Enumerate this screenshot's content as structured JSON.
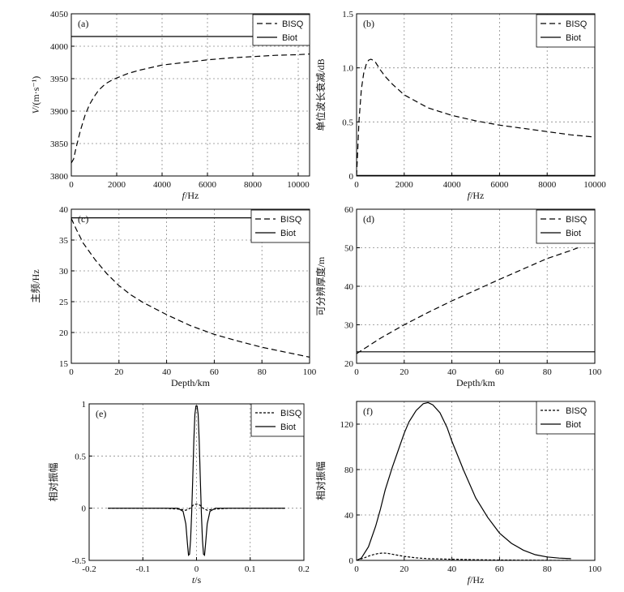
{
  "chart_data": [
    {
      "panel": "(a)",
      "type": "line",
      "xlabel_italic": "f",
      "xlabel_rest": "/Hz",
      "ylabel_italic": "V",
      "ylabel_rest": "/(m·s⁻¹)",
      "xlim": [
        0,
        10500
      ],
      "ylim": [
        3800,
        4050
      ],
      "xticks": [
        0,
        2000,
        4000,
        6000,
        8000,
        10000
      ],
      "yticks": [
        3800,
        3850,
        3900,
        3950,
        4000,
        4050
      ],
      "legend": {
        "position": "top-right",
        "entries": [
          "BISQ",
          "Biot"
        ]
      },
      "series": [
        {
          "name": "BISQ",
          "style": "dashed",
          "x": [
            0,
            100,
            200,
            400,
            600,
            800,
            1000,
            1200,
            1500,
            1800,
            2000,
            2500,
            3000,
            4000,
            5000,
            6000,
            7000,
            8000,
            9000,
            10000,
            10500
          ],
          "y": [
            3820,
            3826,
            3842,
            3870,
            3893,
            3910,
            3922,
            3932,
            3942,
            3948,
            3951,
            3958,
            3963,
            3971,
            3975,
            3979,
            3982,
            3984,
            3986,
            3987,
            3988
          ]
        },
        {
          "name": "Biot",
          "style": "solid",
          "x": [
            0,
            10500
          ],
          "y": [
            4015,
            4015
          ]
        }
      ]
    },
    {
      "panel": "(b)",
      "type": "line",
      "xlabel_italic": "f",
      "xlabel_rest": "/Hz",
      "ylabel_italic": "",
      "ylabel_rest": "单位波长衰减/dB",
      "xlim": [
        0,
        10000
      ],
      "ylim": [
        0,
        1.5
      ],
      "xticks": [
        0,
        2000,
        4000,
        6000,
        8000,
        10000
      ],
      "yticks": [
        0,
        0.5,
        1.0,
        1.5
      ],
      "ytick_labels": [
        "0",
        "0.5",
        "1.0",
        "1.5"
      ],
      "legend": {
        "position": "top-right",
        "entries": [
          "BISQ",
          "Biot"
        ]
      },
      "series": [
        {
          "name": "BISQ",
          "style": "dashed",
          "x": [
            0,
            50,
            100,
            200,
            300,
            400,
            500,
            600,
            700,
            800,
            1000,
            1200,
            1500,
            2000,
            3000,
            4000,
            5000,
            6000,
            7000,
            8000,
            9000,
            10000
          ],
          "y": [
            0.0,
            0.25,
            0.5,
            0.8,
            0.95,
            1.03,
            1.07,
            1.08,
            1.07,
            1.05,
            0.98,
            0.92,
            0.85,
            0.75,
            0.63,
            0.56,
            0.51,
            0.47,
            0.44,
            0.41,
            0.38,
            0.36
          ]
        },
        {
          "name": "Biot",
          "style": "solid",
          "x": [
            0,
            10000
          ],
          "y": [
            0.005,
            0.005
          ]
        }
      ]
    },
    {
      "panel": "(c)",
      "type": "line",
      "xlabel_italic": "",
      "xlabel_rest": "Depth/km",
      "ylabel_italic": "",
      "ylabel_rest": "主频/Hz",
      "xlim": [
        0,
        100
      ],
      "ylim": [
        15,
        40
      ],
      "xticks": [
        0,
        20,
        40,
        60,
        80,
        100
      ],
      "yticks": [
        15,
        20,
        25,
        30,
        35,
        40
      ],
      "legend": {
        "position": "top-right",
        "entries": [
          "BISQ",
          "Biot"
        ]
      },
      "series": [
        {
          "name": "BISQ",
          "style": "dashed",
          "x": [
            0,
            2,
            5,
            10,
            15,
            20,
            25,
            30,
            40,
            50,
            60,
            70,
            80,
            90,
            100
          ],
          "y": [
            38.5,
            36.8,
            34.5,
            31.8,
            29.5,
            27.6,
            26.1,
            24.9,
            22.9,
            21.1,
            19.7,
            18.6,
            17.6,
            16.8,
            16.0
          ]
        },
        {
          "name": "Biot",
          "style": "solid",
          "x": [
            0,
            100
          ],
          "y": [
            38.6,
            38.6
          ]
        }
      ]
    },
    {
      "panel": "(d)",
      "type": "line",
      "xlabel_italic": "",
      "xlabel_rest": "Depth/km",
      "ylabel_italic": "",
      "ylabel_rest": "可分辨厚度/m",
      "xlim": [
        0,
        100
      ],
      "ylim": [
        20,
        60
      ],
      "xticks": [
        0,
        20,
        40,
        60,
        80,
        100
      ],
      "yticks": [
        20,
        30,
        40,
        50,
        60
      ],
      "legend": {
        "position": "top-right",
        "entries": [
          "BISQ",
          "Biot"
        ]
      },
      "series": [
        {
          "name": "BISQ",
          "style": "dashed",
          "x": [
            0,
            10,
            20,
            30,
            40,
            50,
            60,
            70,
            80,
            90,
            93
          ],
          "y": [
            22.5,
            26.5,
            30.0,
            33.2,
            36.2,
            39.0,
            41.8,
            44.5,
            47.2,
            49.3,
            50.0
          ]
        },
        {
          "name": "Biot",
          "style": "solid",
          "x": [
            0,
            100
          ],
          "y": [
            23,
            23
          ]
        }
      ]
    },
    {
      "panel": "(e)",
      "type": "line",
      "xlabel_italic": "t",
      "xlabel_rest": "/s",
      "ylabel_italic": "",
      "ylabel_rest": "相对振幅",
      "xlim": [
        -0.2,
        0.2
      ],
      "ylim": [
        -0.5,
        1
      ],
      "xticks": [
        -0.2,
        -0.1,
        0,
        0.1,
        0.2
      ],
      "yticks": [
        -0.5,
        0,
        0.5,
        1
      ],
      "legend": {
        "position": "top-right",
        "entries": [
          "BISQ",
          "Biot"
        ]
      },
      "series": [
        {
          "name": "BISQ",
          "style": "dashed-fine",
          "x": [
            -0.165,
            -0.06,
            -0.03,
            -0.02,
            -0.012,
            -0.006,
            0,
            0.006,
            0.012,
            0.02,
            0.03,
            0.06,
            0.165
          ],
          "y": [
            0,
            0,
            -0.01,
            -0.02,
            0.0,
            0.03,
            0.04,
            0.03,
            0.0,
            -0.02,
            -0.01,
            0,
            0
          ]
        },
        {
          "name": "Biot",
          "style": "solid",
          "x": [
            -0.165,
            -0.035,
            -0.025,
            -0.02,
            -0.017,
            -0.015,
            -0.013,
            -0.011,
            -0.009,
            -0.007,
            -0.005,
            -0.003,
            -0.001,
            0,
            0.001,
            0.003,
            0.005,
            0.007,
            0.009,
            0.011,
            0.013,
            0.015,
            0.017,
            0.02,
            0.025,
            0.035,
            0.165
          ],
          "y": [
            0,
            0,
            -0.03,
            -0.15,
            -0.33,
            -0.45,
            -0.44,
            -0.3,
            -0.05,
            0.3,
            0.65,
            0.9,
            0.98,
            0.98,
            0.98,
            0.9,
            0.65,
            0.3,
            -0.05,
            -0.3,
            -0.44,
            -0.45,
            -0.33,
            -0.15,
            -0.03,
            0,
            0
          ]
        }
      ]
    },
    {
      "panel": "(f)",
      "type": "line",
      "xlabel_italic": "f",
      "xlabel_rest": "/Hz",
      "ylabel_italic": "",
      "ylabel_rest": "相对振幅",
      "xlim": [
        0,
        100
      ],
      "ylim": [
        0,
        140
      ],
      "xticks": [
        0,
        20,
        40,
        60,
        80,
        100
      ],
      "yticks": [
        0,
        40,
        80,
        120
      ],
      "legend": {
        "position": "top-right",
        "entries": [
          "BISQ",
          "Biot"
        ]
      },
      "series": [
        {
          "name": "BISQ",
          "style": "dashed-fine",
          "x": [
            0,
            3,
            6,
            9,
            11,
            13,
            16,
            20,
            25,
            30,
            40,
            50,
            60,
            70,
            80,
            90
          ],
          "y": [
            0,
            2,
            4.5,
            6,
            6.5,
            6.2,
            5,
            3.5,
            2.2,
            1.5,
            1,
            0.6,
            0.3,
            0.2,
            0.1,
            0
          ]
        },
        {
          "name": "Biot",
          "style": "solid",
          "x": [
            0,
            2,
            5,
            8,
            10,
            12,
            15,
            18,
            20,
            22,
            25,
            28,
            30,
            32,
            35,
            38,
            40,
            45,
            50,
            55,
            60,
            65,
            70,
            75,
            80,
            85,
            90
          ],
          "y": [
            0,
            2,
            12,
            30,
            45,
            62,
            82,
            100,
            112,
            122,
            132,
            138,
            139,
            137,
            130,
            117,
            105,
            79,
            55,
            38,
            24,
            15,
            9,
            5,
            3,
            2,
            1.5
          ]
        }
      ]
    }
  ]
}
